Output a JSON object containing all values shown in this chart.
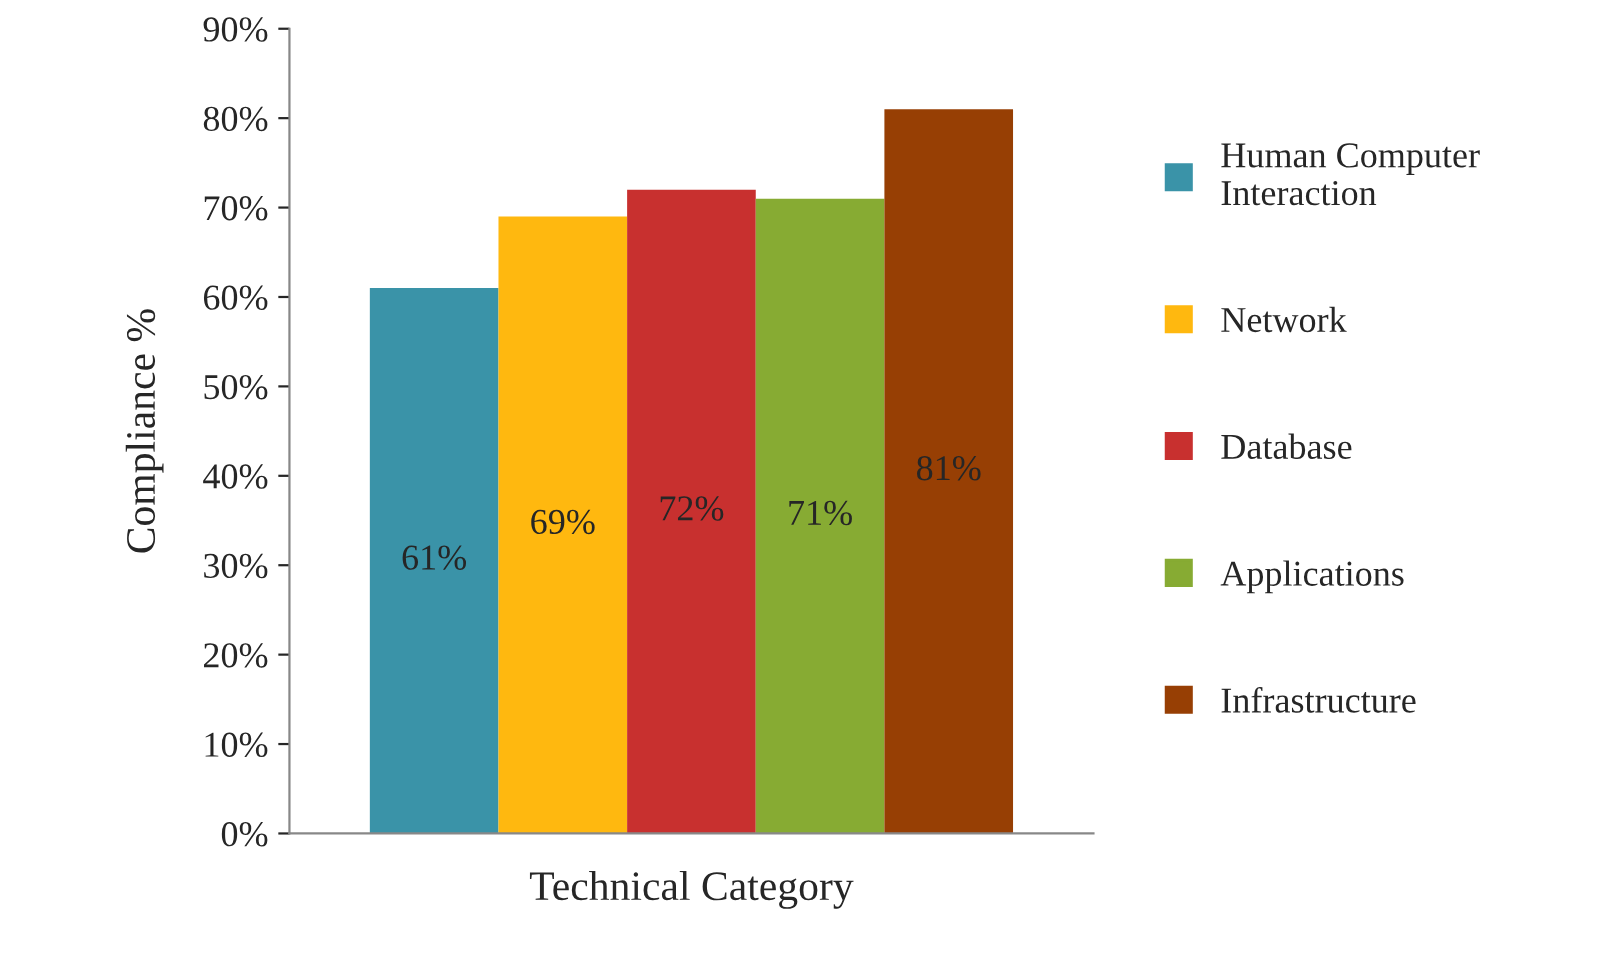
{
  "chart_data": {
    "type": "bar",
    "xlabel": "Technical Category",
    "ylabel": "Compliance %",
    "categories": [
      null
    ],
    "series": [
      {
        "name": "Human Computer Interaction",
        "color": "#3a93a8",
        "values": [
          61
        ],
        "value_labels": [
          "61%"
        ]
      },
      {
        "name": "Network",
        "color": "#ffb80f",
        "values": [
          69
        ],
        "value_labels": [
          "69%"
        ]
      },
      {
        "name": "Database",
        "color": "#c8302f",
        "values": [
          72
        ],
        "value_labels": [
          "72%"
        ]
      },
      {
        "name": "Applications",
        "color": "#87ab33",
        "values": [
          71
        ],
        "value_labels": [
          "71%"
        ]
      },
      {
        "name": "Infrastructure",
        "color": "#973f04",
        "values": [
          81
        ],
        "value_labels": [
          "81%"
        ]
      }
    ],
    "ylim": [
      0,
      90
    ],
    "yticks": [
      {
        "value": 0,
        "label": "0%"
      },
      {
        "value": 10,
        "label": "10%"
      },
      {
        "value": 20,
        "label": "20%"
      },
      {
        "value": 30,
        "label": "30%"
      },
      {
        "value": 40,
        "label": "40%"
      },
      {
        "value": 50,
        "label": "50%"
      },
      {
        "value": 60,
        "label": "60%"
      },
      {
        "value": 70,
        "label": "70%"
      },
      {
        "value": 80,
        "label": "80%"
      },
      {
        "value": 90,
        "label": "90%"
      }
    ],
    "grid": false,
    "legend": "right"
  }
}
